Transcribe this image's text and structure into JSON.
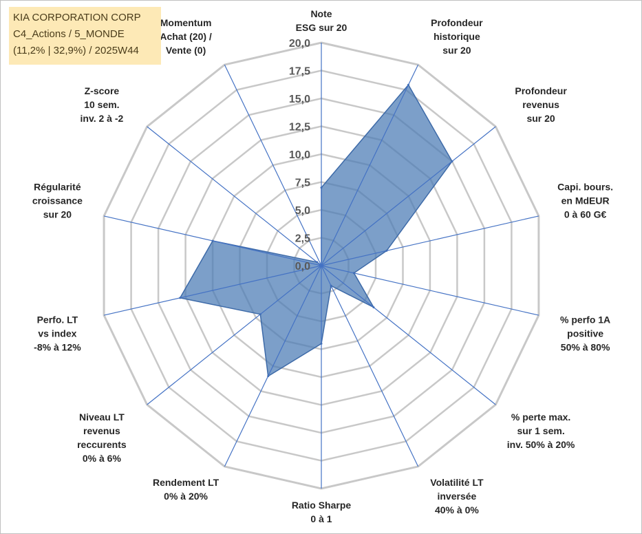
{
  "chart_data": {
    "type": "radar",
    "title_lines": [
      "KIA CORPORATION CORP",
      "C4_Actions / 5_MONDE",
      "(11,2% | 32,9%) / 2025W44"
    ],
    "rmax": 20,
    "ticks": [
      "0,0",
      "2,5",
      "5,0",
      "7,5",
      "10,0",
      "12,5",
      "15,0",
      "17,5",
      "20,0"
    ],
    "tick_values": [
      0,
      2.5,
      5,
      7.5,
      10,
      12.5,
      15,
      17.5,
      20
    ],
    "axes": [
      {
        "label": [
          "Note",
          "ESG sur 20"
        ],
        "value": 7.0
      },
      {
        "label": [
          "Profondeur",
          "historique",
          "sur 20"
        ],
        "value": 18.0
      },
      {
        "label": [
          "Profondeur",
          "revenus",
          "sur 20"
        ],
        "value": 15.0
      },
      {
        "label": [
          "Capi. bours.",
          "en MdEUR",
          "0 à 60 G€"
        ],
        "value": 6.0
      },
      {
        "label": [
          "% perfo 1A",
          "positive",
          "50% à 80%"
        ],
        "value": 3.0
      },
      {
        "label": [
          "% perte max.",
          "sur 1 sem.",
          "inv. 50% à 20%"
        ],
        "value": 6.0
      },
      {
        "label": [
          "Volatilité LT",
          "inversée",
          "40% à 0%"
        ],
        "value": 2.0
      },
      {
        "label": [
          "Ratio Sharpe",
          "0 à 1"
        ],
        "value": 7.0
      },
      {
        "label": [
          "Rendement LT",
          "0% à 20%"
        ],
        "value": 11.0
      },
      {
        "label": [
          "Niveau LT",
          "revenus",
          "reccurents",
          "0% à 6%"
        ],
        "value": 7.0
      },
      {
        "label": [
          "Perfo. LT",
          "vs index",
          "-8% à 12%"
        ],
        "value": 13.0
      },
      {
        "label": [
          "Régularité",
          "croissance",
          "sur 20"
        ],
        "value": 10.0
      },
      {
        "label": [
          "Z-score",
          "10 sem.",
          "inv. 2 à -2"
        ],
        "value": 0.5
      },
      {
        "label": [
          "Momentum",
          "Achat (20) /",
          "Vente (0)"
        ],
        "value": 0.0
      }
    ],
    "colors": {
      "fill": "#4a7ab4",
      "stroke": "#3d6aa8",
      "grid": "#c8c8c8",
      "spoke": "#4472c4"
    }
  }
}
